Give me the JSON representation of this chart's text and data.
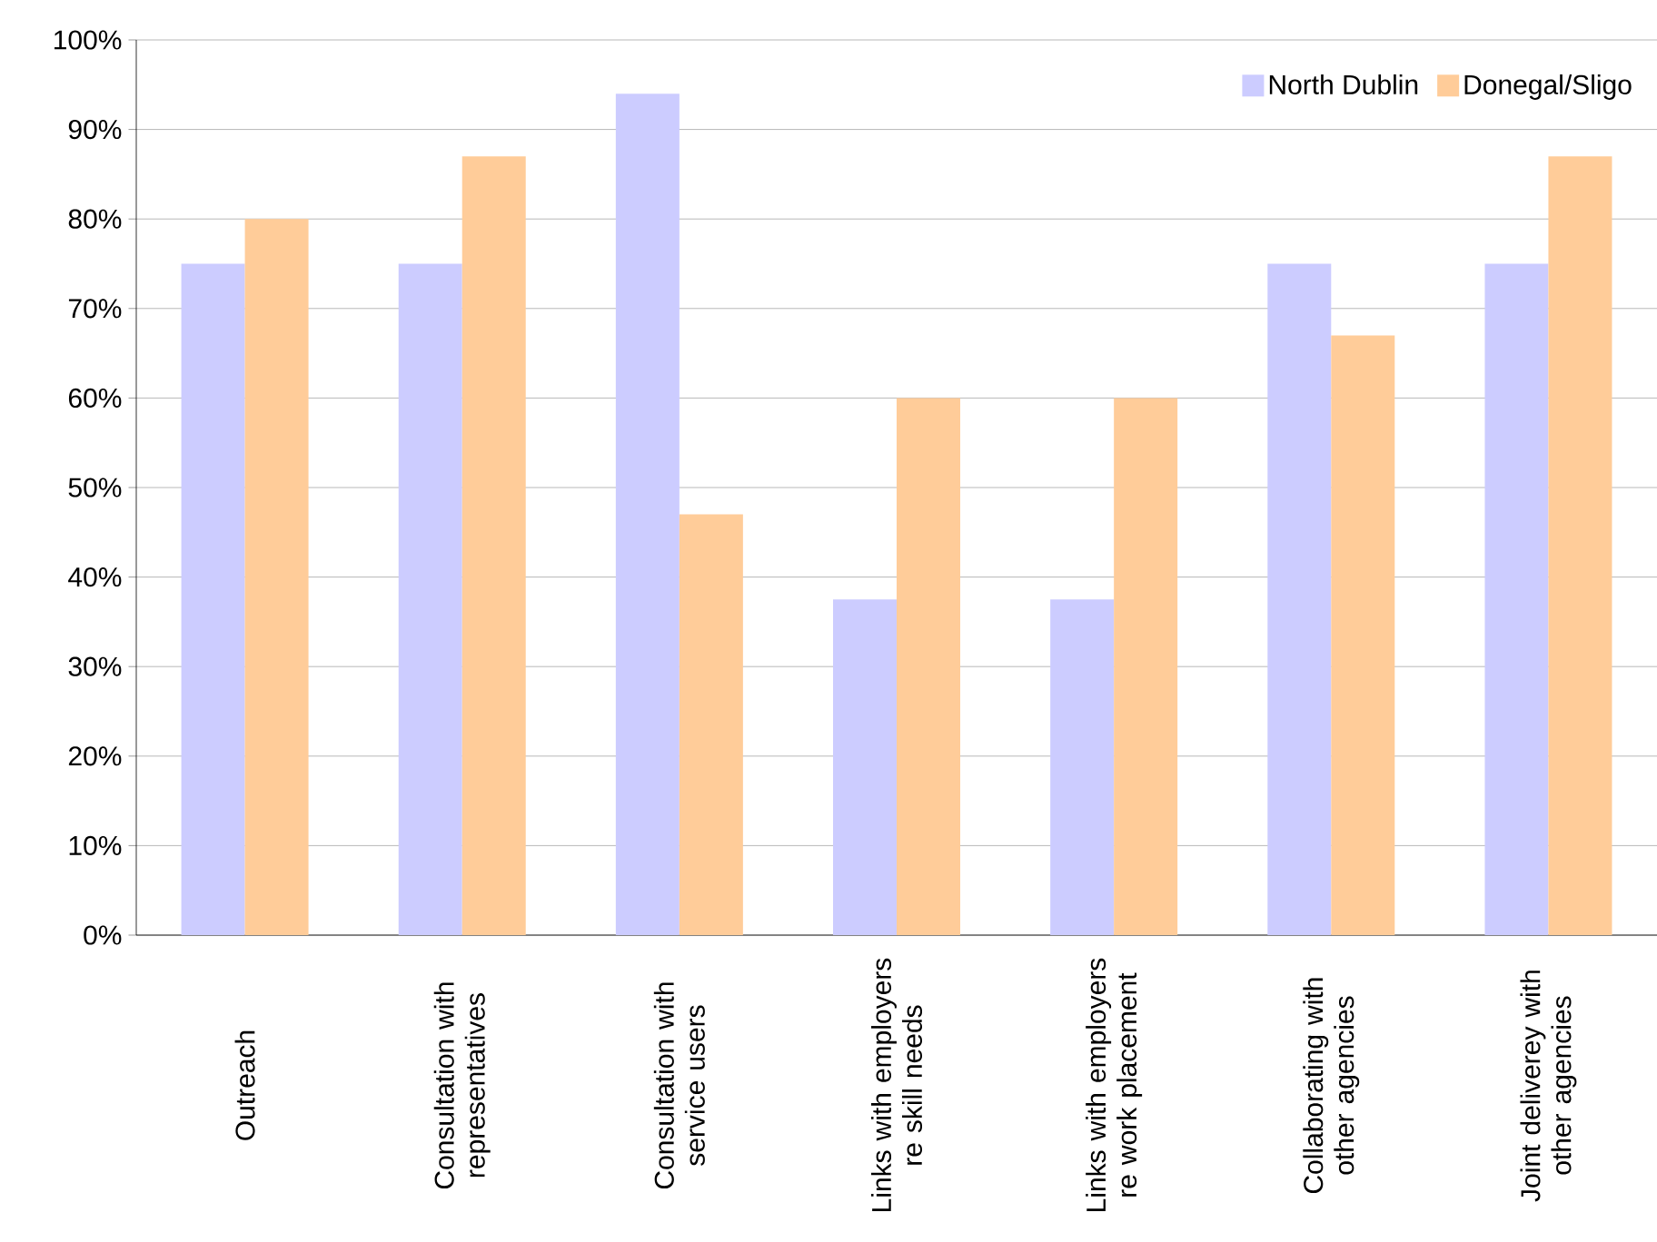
{
  "chart_data": {
    "type": "bar",
    "categories": [
      "Outreach",
      "Consultation with representatives",
      "Consultation with service users",
      "Links with employers re skill needs",
      "Links with employers re work placement",
      "Collaborating with other agencies",
      "Joint deliverey with other agencies"
    ],
    "series": [
      {
        "name": "North Dublin",
        "color": "#ccccff",
        "values": [
          75,
          75,
          94,
          37.5,
          37.5,
          75,
          75
        ]
      },
      {
        "name": "Donegal/Sligo",
        "color": "#ffcc99",
        "values": [
          80,
          87,
          47,
          60,
          60,
          67,
          87
        ]
      }
    ],
    "ylim": [
      0,
      100
    ],
    "yticks": [
      {
        "value": 0,
        "label": "0%"
      },
      {
        "value": 10,
        "label": "10%"
      },
      {
        "value": 20,
        "label": "20%"
      },
      {
        "value": 30,
        "label": "30%"
      },
      {
        "value": 40,
        "label": "40%"
      },
      {
        "value": 50,
        "label": "50%"
      },
      {
        "value": 60,
        "label": "60%"
      },
      {
        "value": 70,
        "label": "70%"
      },
      {
        "value": 80,
        "label": "80%"
      },
      {
        "value": 90,
        "label": "90%"
      },
      {
        "value": 100,
        "label": "100%"
      }
    ],
    "grid": "y",
    "legend": "top right"
  }
}
